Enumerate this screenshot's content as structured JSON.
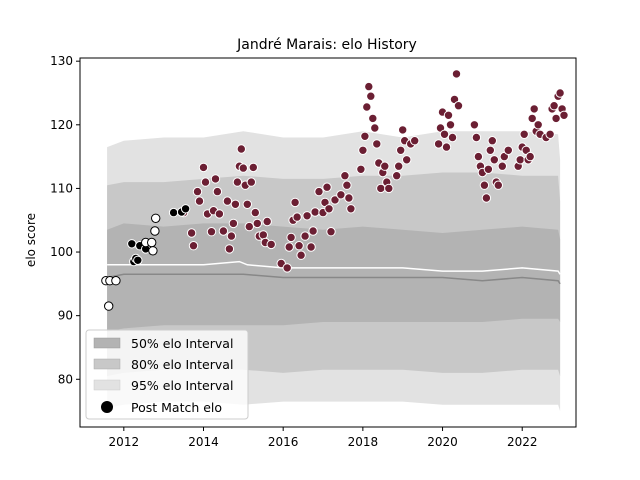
{
  "chart_data": {
    "type": "scatter",
    "title": "Jandré Marais: elo History",
    "xlabel": "",
    "ylabel": "elo score",
    "xlim": [
      2010.9,
      2023.35
    ],
    "ylim": [
      72.5,
      130.5
    ],
    "x_ticks": [
      2012,
      2014,
      2016,
      2018,
      2020,
      2022
    ],
    "y_ticks": [
      80,
      90,
      100,
      110,
      120,
      130
    ],
    "grid": false,
    "legend_position": "lower-left",
    "legend": [
      "50% elo Interval",
      "80% elo Interval",
      "95% elo Interval",
      "Post Match elo"
    ],
    "colors": {
      "band50": "#b3b3b3",
      "band80": "#c8c8c8",
      "band95": "#e2e2e2",
      "median_line": "#888888",
      "mean_line": "#ffffff",
      "dot_early_white": "#ffffff",
      "dot_early_black": "#000000",
      "dot_later": "#6b1f33"
    },
    "bands": {
      "x": [
        2011.58,
        2012.0,
        2013.0,
        2014.0,
        2015.0,
        2016.0,
        2017.0,
        2018.0,
        2019.0,
        2020.0,
        2021.0,
        2022.0,
        2022.9,
        2022.95
      ],
      "p97_5": [
        116.5,
        117.5,
        118.0,
        118.0,
        119.0,
        118.0,
        118.0,
        119.0,
        118.0,
        119.0,
        119.0,
        119.0,
        118.5,
        114.5
      ],
      "p90": [
        110.5,
        111.0,
        111.0,
        111.5,
        112.0,
        111.5,
        111.5,
        112.0,
        112.0,
        112.5,
        112.5,
        112.0,
        112.0,
        108.0
      ],
      "p75": [
        103.5,
        104.5,
        104.0,
        104.5,
        104.5,
        104.0,
        103.5,
        104.0,
        103.5,
        103.0,
        103.5,
        104.0,
        103.5,
        102.0
      ],
      "p50": [
        96.0,
        96.5,
        96.5,
        96.5,
        96.5,
        96.0,
        96.0,
        96.0,
        96.0,
        96.0,
        95.5,
        96.0,
        95.5,
        95.0
      ],
      "p25": [
        87.5,
        88.0,
        88.5,
        88.5,
        88.5,
        88.5,
        89.0,
        89.0,
        89.0,
        89.0,
        89.0,
        89.5,
        89.5,
        89.0
      ],
      "p10": [
        80.5,
        81.0,
        81.5,
        81.5,
        81.5,
        81.0,
        81.5,
        81.5,
        81.5,
        81.0,
        81.0,
        81.5,
        81.5,
        80.5
      ],
      "p2_5": [
        75.5,
        76.0,
        76.5,
        76.5,
        76.0,
        76.5,
        76.5,
        76.5,
        76.5,
        76.0,
        76.0,
        76.0,
        76.0,
        75.0
      ]
    },
    "mean_line": {
      "x": [
        2011.58,
        2012.0,
        2013.0,
        2014.0,
        2014.9,
        2015.1,
        2016.0,
        2017.0,
        2018.0,
        2019.0,
        2020.0,
        2021.0,
        2022.0,
        2022.9,
        2022.95
      ],
      "y": [
        98.0,
        98.0,
        98.0,
        98.0,
        98.5,
        98.0,
        97.5,
        97.5,
        97.5,
        97.5,
        97.0,
        97.0,
        97.5,
        97.0,
        96.5
      ]
    },
    "series": [
      {
        "name": "Post Match elo",
        "points_white": [
          [
            2011.55,
            95.5
          ],
          [
            2011.65,
            95.5
          ],
          [
            2011.8,
            95.5
          ],
          [
            2011.62,
            91.5
          ],
          [
            2012.55,
            101.5
          ],
          [
            2012.7,
            101.5
          ],
          [
            2012.73,
            100.2
          ],
          [
            2012.78,
            103.3
          ],
          [
            2012.8,
            105.3
          ]
        ],
        "points_black": [
          [
            2012.2,
            101.3
          ],
          [
            2012.25,
            98.5
          ],
          [
            2012.3,
            99.0
          ],
          [
            2012.35,
            98.7
          ],
          [
            2012.4,
            101.0
          ],
          [
            2012.55,
            100.5
          ],
          [
            2013.25,
            106.2
          ],
          [
            2013.45,
            106.3
          ],
          [
            2013.55,
            106.8
          ]
        ],
        "points": [
          [
            2013.5,
            106.2
          ],
          [
            2013.7,
            103.0
          ],
          [
            2013.75,
            101.0
          ],
          [
            2013.85,
            109.5
          ],
          [
            2013.9,
            108.0
          ],
          [
            2014.0,
            113.3
          ],
          [
            2014.05,
            111.0
          ],
          [
            2014.1,
            106.0
          ],
          [
            2014.2,
            103.2
          ],
          [
            2014.25,
            106.5
          ],
          [
            2014.3,
            111.5
          ],
          [
            2014.35,
            109.5
          ],
          [
            2014.4,
            106.0
          ],
          [
            2014.5,
            103.3
          ],
          [
            2014.6,
            108.0
          ],
          [
            2014.65,
            100.5
          ],
          [
            2014.7,
            102.5
          ],
          [
            2014.75,
            104.5
          ],
          [
            2014.8,
            107.5
          ],
          [
            2014.85,
            111.0
          ],
          [
            2014.9,
            113.5
          ],
          [
            2014.95,
            116.2
          ],
          [
            2015.0,
            113.2
          ],
          [
            2015.05,
            110.5
          ],
          [
            2015.1,
            107.5
          ],
          [
            2015.15,
            104.0
          ],
          [
            2015.2,
            111.0
          ],
          [
            2015.25,
            113.3
          ],
          [
            2015.3,
            106.2
          ],
          [
            2015.35,
            104.5
          ],
          [
            2015.4,
            102.5
          ],
          [
            2015.5,
            102.7
          ],
          [
            2015.55,
            101.5
          ],
          [
            2015.6,
            104.8
          ],
          [
            2015.7,
            101.2
          ],
          [
            2015.95,
            98.2
          ],
          [
            2016.1,
            97.5
          ],
          [
            2016.15,
            100.8
          ],
          [
            2016.2,
            102.3
          ],
          [
            2016.25,
            105.0
          ],
          [
            2016.3,
            107.8
          ],
          [
            2016.35,
            105.5
          ],
          [
            2016.4,
            101.0
          ],
          [
            2016.45,
            99.5
          ],
          [
            2016.55,
            102.5
          ],
          [
            2016.6,
            105.7
          ],
          [
            2016.7,
            100.8
          ],
          [
            2016.75,
            103.3
          ],
          [
            2016.8,
            106.3
          ],
          [
            2016.9,
            109.5
          ],
          [
            2017.0,
            106.2
          ],
          [
            2017.05,
            107.8
          ],
          [
            2017.1,
            110.2
          ],
          [
            2017.15,
            106.8
          ],
          [
            2017.2,
            103.2
          ],
          [
            2017.3,
            108.2
          ],
          [
            2017.45,
            109.0
          ],
          [
            2017.55,
            112.0
          ],
          [
            2017.6,
            110.5
          ],
          [
            2017.65,
            108.5
          ],
          [
            2017.7,
            106.8
          ],
          [
            2017.95,
            113.0
          ],
          [
            2018.0,
            116.0
          ],
          [
            2018.05,
            118.2
          ],
          [
            2018.1,
            122.8
          ],
          [
            2018.15,
            126.0
          ],
          [
            2018.2,
            124.5
          ],
          [
            2018.25,
            121.0
          ],
          [
            2018.3,
            119.5
          ],
          [
            2018.35,
            117.0
          ],
          [
            2018.4,
            114.0
          ],
          [
            2018.45,
            110.0
          ],
          [
            2018.5,
            112.5
          ],
          [
            2018.55,
            113.5
          ],
          [
            2018.6,
            111.0
          ],
          [
            2018.65,
            110.0
          ],
          [
            2018.85,
            112.0
          ],
          [
            2018.9,
            113.5
          ],
          [
            2018.95,
            116.0
          ],
          [
            2019.0,
            119.2
          ],
          [
            2019.05,
            117.5
          ],
          [
            2019.1,
            114.5
          ],
          [
            2019.2,
            117.0
          ],
          [
            2019.3,
            117.5
          ],
          [
            2019.9,
            117.0
          ],
          [
            2019.95,
            119.5
          ],
          [
            2020.0,
            122.0
          ],
          [
            2020.05,
            118.5
          ],
          [
            2020.1,
            116.5
          ],
          [
            2020.15,
            121.5
          ],
          [
            2020.2,
            120.0
          ],
          [
            2020.25,
            118.0
          ],
          [
            2020.3,
            124.0
          ],
          [
            2020.35,
            128.0
          ],
          [
            2020.4,
            123.0
          ],
          [
            2020.8,
            120.0
          ],
          [
            2020.85,
            118.0
          ],
          [
            2020.9,
            115.0
          ],
          [
            2020.95,
            113.5
          ],
          [
            2021.0,
            112.5
          ],
          [
            2021.05,
            110.5
          ],
          [
            2021.1,
            108.5
          ],
          [
            2021.15,
            113.0
          ],
          [
            2021.2,
            116.0
          ],
          [
            2021.25,
            117.5
          ],
          [
            2021.3,
            114.5
          ],
          [
            2021.35,
            111.0
          ],
          [
            2021.4,
            110.5
          ],
          [
            2021.5,
            113.5
          ],
          [
            2021.55,
            115.0
          ],
          [
            2021.65,
            116.0
          ],
          [
            2021.9,
            113.5
          ],
          [
            2021.95,
            114.5
          ],
          [
            2022.0,
            116.5
          ],
          [
            2022.05,
            118.5
          ],
          [
            2022.1,
            116.0
          ],
          [
            2022.15,
            114.5
          ],
          [
            2022.2,
            115.0
          ],
          [
            2022.25,
            121.0
          ],
          [
            2022.3,
            122.5
          ],
          [
            2022.35,
            119.0
          ],
          [
            2022.4,
            120.0
          ],
          [
            2022.45,
            118.5
          ],
          [
            2022.6,
            118.0
          ],
          [
            2022.7,
            118.5
          ],
          [
            2022.75,
            122.5
          ],
          [
            2022.8,
            123.0
          ],
          [
            2022.85,
            121.0
          ],
          [
            2022.9,
            124.5
          ],
          [
            2022.95,
            125.0
          ],
          [
            2023.0,
            122.5
          ],
          [
            2023.05,
            121.5
          ]
        ]
      }
    ]
  }
}
